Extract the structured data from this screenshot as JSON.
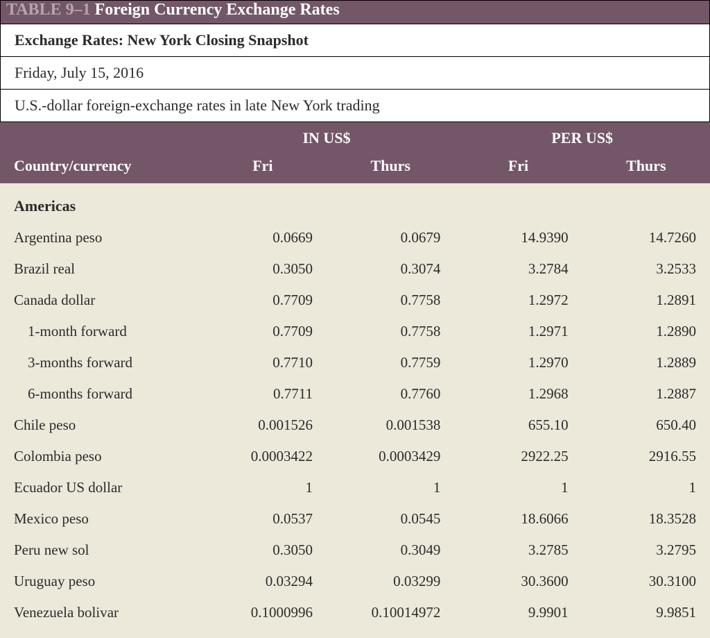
{
  "title": {
    "prefix": "TABLE 9–1",
    "main": " Foreign Currency Exchange Rates"
  },
  "subtitle": "Exchange Rates: New York Closing Snapshot",
  "date": "Friday, July 15, 2016",
  "description": "U.S.-dollar foreign-exchange rates in late New York trading",
  "header": {
    "group_in": "IN US$",
    "group_per": "PER US$",
    "country": "Country/currency",
    "fri": "Fri",
    "thurs": "Thurs"
  },
  "colors": {
    "band": "#735768",
    "band_text": "#ffffff",
    "title_prefix": "#b8a4b0",
    "body_bg": "#ece8da",
    "text": "#2b2b2b",
    "border": "#000000"
  },
  "region": "Americas",
  "rows": [
    {
      "label": "Argentina peso",
      "indent": false,
      "in_fri": "0.0669",
      "in_thurs": "0.0679",
      "per_fri": "14.9390",
      "per_thurs": "14.7260"
    },
    {
      "label": "Brazil real",
      "indent": false,
      "in_fri": "0.3050",
      "in_thurs": "0.3074",
      "per_fri": "3.2784",
      "per_thurs": "3.2533"
    },
    {
      "label": "Canada dollar",
      "indent": false,
      "in_fri": "0.7709",
      "in_thurs": "0.7758",
      "per_fri": "1.2972",
      "per_thurs": "1.2891"
    },
    {
      "label": "1-month forward",
      "indent": true,
      "in_fri": "0.7709",
      "in_thurs": "0.7758",
      "per_fri": "1.2971",
      "per_thurs": "1.2890"
    },
    {
      "label": "3-months forward",
      "indent": true,
      "in_fri": "0.7710",
      "in_thurs": "0.7759",
      "per_fri": "1.2970",
      "per_thurs": "1.2889"
    },
    {
      "label": "6-months forward",
      "indent": true,
      "in_fri": "0.7711",
      "in_thurs": "0.7760",
      "per_fri": "1.2968",
      "per_thurs": "1.2887"
    },
    {
      "label": "Chile peso",
      "indent": false,
      "in_fri": "0.001526",
      "in_thurs": "0.001538",
      "per_fri": "655.10",
      "per_thurs": "650.40"
    },
    {
      "label": "Colombia peso",
      "indent": false,
      "in_fri": "0.0003422",
      "in_thurs": "0.0003429",
      "per_fri": "2922.25",
      "per_thurs": "2916.55"
    },
    {
      "label": "Ecuador US dollar",
      "indent": false,
      "in_fri": "1",
      "in_thurs": "1",
      "per_fri": "1",
      "per_thurs": "1"
    },
    {
      "label": "Mexico peso",
      "indent": false,
      "in_fri": "0.0537",
      "in_thurs": "0.0545",
      "per_fri": "18.6066",
      "per_thurs": "18.3528"
    },
    {
      "label": "Peru new sol",
      "indent": false,
      "in_fri": "0.3050",
      "in_thurs": "0.3049",
      "per_fri": "3.2785",
      "per_thurs": "3.2795"
    },
    {
      "label": "Uruguay peso",
      "indent": false,
      "in_fri": "0.03294",
      "in_thurs": "0.03299",
      "per_fri": "30.3600",
      "per_thurs": "30.3100"
    },
    {
      "label": "Venezuela bolivar",
      "indent": false,
      "in_fri": "0.1000996",
      "in_thurs": "0.10014972",
      "per_fri": "9.9901",
      "per_thurs": "9.9851"
    }
  ]
}
